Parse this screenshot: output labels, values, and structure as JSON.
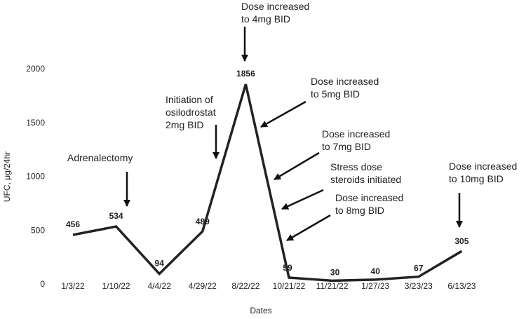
{
  "chart_data": {
    "type": "line",
    "title": "",
    "xlabel": "Dates",
    "ylabel": "UFC, μg/24hr",
    "ylim": [
      0,
      2000
    ],
    "yticks": [
      0,
      500,
      1000,
      1500,
      2000
    ],
    "grid": false,
    "categories": [
      "1/3/22",
      "1/10/22",
      "4/4/22",
      "4/29/22",
      "8/22/22",
      "10/21/22",
      "11/21/22",
      "1/27/23",
      "3/23/23",
      "6/13/23"
    ],
    "series": [
      {
        "name": "UFC",
        "values": [
          456,
          534,
          94,
          489,
          1856,
          59,
          30,
          40,
          67,
          305
        ],
        "color": "#222222"
      }
    ],
    "annotations": [
      {
        "lines": [
          "Dose increased",
          "to 4mg BID"
        ],
        "points_to": "8/22/22"
      },
      {
        "lines": [
          "Initiation of",
          "osilodrostat",
          "2mg BID"
        ],
        "points_to": "between 4/29/22 and 8/22/22"
      },
      {
        "lines": [
          "Adrenalectomy"
        ],
        "points_to": "between 1/10/22 and 4/4/22"
      },
      {
        "lines": [
          "Dose increased",
          "to 5mg BID"
        ],
        "points_to": "8/22/22 to 10/21/22"
      },
      {
        "lines": [
          "Dose increased",
          "to 7mg BID"
        ],
        "points_to": "8/22/22 to 10/21/22"
      },
      {
        "lines": [
          "Stress dose",
          "steroids initiated"
        ],
        "points_to": "8/22/22 to 10/21/22"
      },
      {
        "lines": [
          "Dose increased",
          "to 8mg BID"
        ],
        "points_to": "10/21/22"
      },
      {
        "lines": [
          "Dose increased",
          "to 10mg BID"
        ],
        "points_to": "6/13/23"
      }
    ]
  }
}
